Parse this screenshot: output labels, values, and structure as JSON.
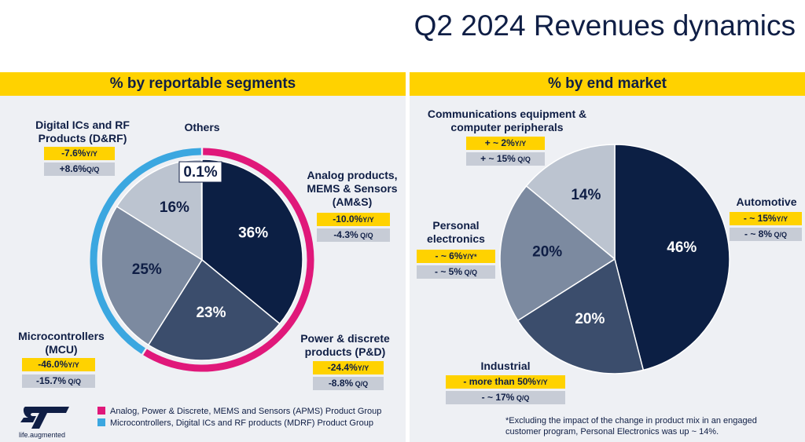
{
  "title": "Q2 2024 Revenues dynamics",
  "left_banner": "% by reportable segments",
  "right_banner": "% by end market",
  "chart_data": [
    {
      "type": "pie",
      "title": "% by reportable segments",
      "categories": [
        "Analog products, MEMS & Sensors (AM&S)",
        "Power & discrete products (P&D)",
        "Microcontrollers (MCU)",
        "Digital ICs and RF Products (D&RF)",
        "Others"
      ],
      "values": [
        36,
        23,
        25,
        16,
        0.1
      ],
      "value_labels": [
        "36%",
        "23%",
        "25%",
        "16%",
        "0.1%"
      ],
      "colors": [
        "#0c1f44",
        "#3b4d6c",
        "#7c8aa0",
        "#bcc4d0",
        "#ffffff"
      ],
      "groups": [
        {
          "name": "Analog, Power & Discrete, MEMS and Sensors (APMS) Product Group",
          "color": "#e0187a"
        },
        {
          "name": "Microcontrollers, Digital ICs and RF products (MDRF) Product Group",
          "color": "#3ba7e0"
        }
      ]
    },
    {
      "type": "pie",
      "title": "% by end market",
      "categories": [
        "Automotive",
        "Industrial",
        "Personal electronics",
        "Communications equipment & computer peripherals"
      ],
      "values": [
        46,
        20,
        20,
        14
      ],
      "value_labels": [
        "46%",
        "20%",
        "20%",
        "14%"
      ],
      "colors": [
        "#0c1f44",
        "#3b4d6c",
        "#7c8aa0",
        "#bcc4d0"
      ]
    }
  ],
  "segments": {
    "drf": {
      "name": "Digital ICs and RF Products (D&RF)",
      "yy": "-7.6%",
      "yy_unit": "Y/Y",
      "qq": "+8.6%",
      "qq_unit": "Q/Q"
    },
    "others": {
      "name": "Others"
    },
    "ams": {
      "name": "Analog products, MEMS & Sensors (AM&S)",
      "yy": "-10.0%",
      "yy_unit": "Y/Y",
      "qq": "-4.3%",
      "qq_unit": " Q/Q"
    },
    "pd": {
      "name": "Power & discrete products (P&D)",
      "yy": "-24.4%",
      "yy_unit": "Y/Y",
      "qq": "-8.8%",
      "qq_unit": " Q/Q"
    },
    "mcu": {
      "name": "Microcontrollers (MCU)",
      "yy": "-46.0%",
      "yy_unit": "Y/Y",
      "qq": "-15.7%",
      "qq_unit": " Q/Q"
    }
  },
  "markets": {
    "comm": {
      "name": "Communications equipment & computer peripherals",
      "yy": "+ ~ 2%",
      "yy_unit": "Y/Y",
      "qq": "+ ~ 15%",
      "qq_unit": " Q/Q"
    },
    "pe": {
      "name": "Personal electronics",
      "yy": "- ~ 6%",
      "yy_unit": "Y/Y*",
      "qq": "- ~ 5%",
      "qq_unit": " Q/Q"
    },
    "auto": {
      "name": "Automotive",
      "yy": "- ~ 15%",
      "yy_unit": "Y/Y",
      "qq": "- ~ 8%",
      "qq_unit": " Q/Q"
    },
    "ind": {
      "name": "Industrial",
      "yy": "- more than 50%",
      "yy_unit": "Y/Y",
      "qq": "- ~ 17%",
      "qq_unit": "  Q/Q"
    }
  },
  "legend": [
    {
      "label": "Analog, Power & Discrete, MEMS and Sensors (APMS) Product Group",
      "color": "#e0187a"
    },
    {
      "label": "Microcontrollers, Digital ICs and RF products (MDRF) Product Group",
      "color": "#3ba7e0"
    }
  ],
  "footnote_1": "*Excluding the impact of the change in product mix in an engaged",
  "footnote_2": "customer program, Personal Electronics was up ~ 14%.",
  "logo_text": "ST",
  "tagline": "life.augmented"
}
